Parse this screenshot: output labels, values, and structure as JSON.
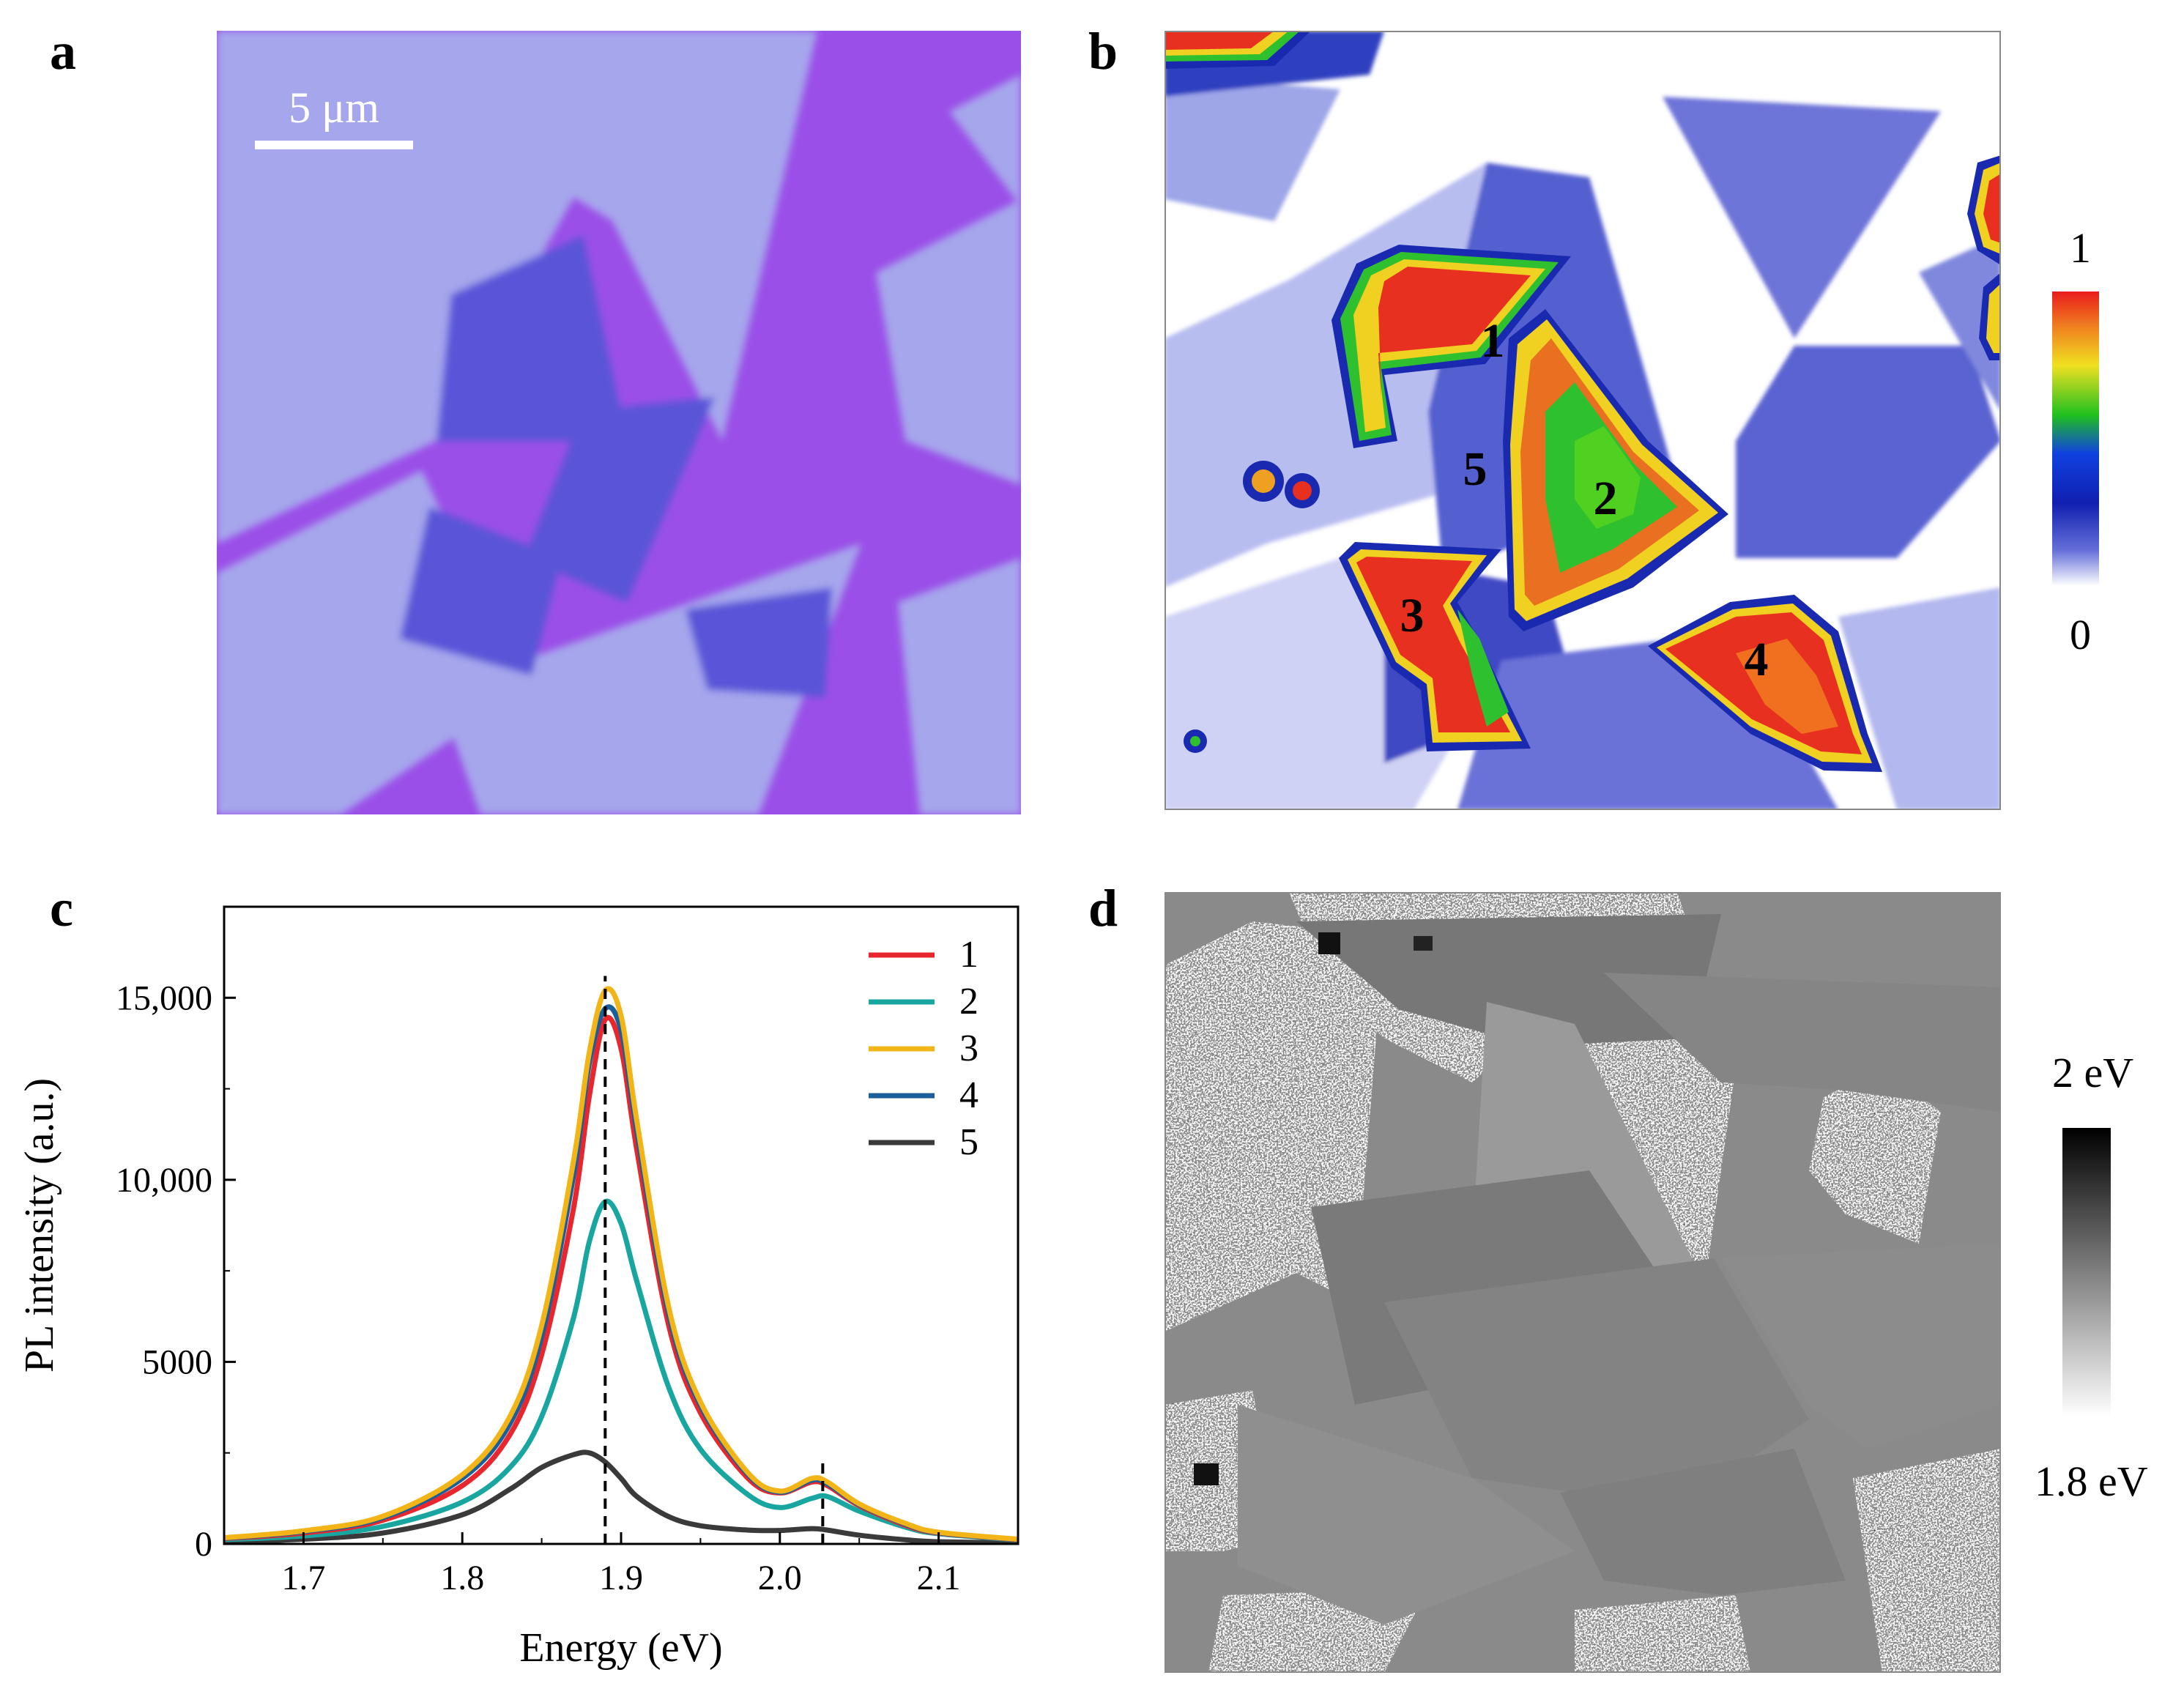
{
  "figure": {
    "panel_labels": [
      "a",
      "b",
      "c",
      "d"
    ]
  },
  "panel_a": {
    "scale_bar_label": "5 μm",
    "colors": {
      "substrate": "#9a4fe8",
      "bilayer": "#5a55d8",
      "monolayer": "#a6a6ec"
    }
  },
  "panel_b": {
    "region_labels": [
      "1",
      "2",
      "3",
      "4",
      "5"
    ],
    "colorbar": {
      "max_label": "1",
      "min_label": "0"
    }
  },
  "panel_d": {
    "colorbar": {
      "max_label": "2 eV",
      "min_label": "1.8 eV"
    }
  },
  "chart_data": {
    "type": "line",
    "xlabel": "Energy (eV)",
    "ylabel": "PL intensity (a.u.)",
    "xlim": [
      1.65,
      2.15
    ],
    "ylim": [
      0,
      17500
    ],
    "x_ticks": [
      1.7,
      1.8,
      1.9,
      2.0,
      2.1
    ],
    "x_tick_labels": [
      "1.7",
      "1.8",
      "1.9",
      "2.0",
      "2.1"
    ],
    "y_ticks": [
      0,
      5000,
      10000,
      15000
    ],
    "y_tick_labels": [
      "0",
      "5000",
      "10,000",
      "15,000"
    ],
    "reference_lines": [
      {
        "x": 1.89,
        "y_top": 15600
      },
      {
        "x": 2.027,
        "y_top": 2300
      }
    ],
    "x": [
      1.65,
      1.7,
      1.75,
      1.8,
      1.83,
      1.85,
      1.87,
      1.88,
      1.89,
      1.9,
      1.91,
      1.93,
      1.95,
      1.98,
      2.0,
      2.02,
      2.03,
      2.05,
      2.08,
      2.1,
      2.15
    ],
    "series": [
      {
        "name": "1",
        "color": "#e8262d",
        "values": [
          150,
          300,
          650,
          1600,
          3000,
          5200,
          9200,
          12300,
          14400,
          13600,
          10800,
          6000,
          3600,
          1800,
          1400,
          1700,
          1600,
          1050,
          500,
          300,
          120
        ]
      },
      {
        "name": "2",
        "color": "#1aa6a0",
        "values": [
          120,
          220,
          480,
          1150,
          2100,
          3500,
          6200,
          8300,
          9400,
          8800,
          7200,
          4300,
          2600,
          1350,
          1000,
          1250,
          1300,
          900,
          450,
          280,
          110
        ]
      },
      {
        "name": "3",
        "color": "#f2b416",
        "values": [
          170,
          360,
          760,
          1900,
          3500,
          6000,
          10500,
          13500,
          15200,
          14500,
          11600,
          6500,
          3900,
          1950,
          1450,
          1800,
          1700,
          1100,
          550,
          320,
          130
        ]
      },
      {
        "name": "4",
        "color": "#1b5f9a",
        "values": [
          160,
          340,
          720,
          1800,
          3300,
          5700,
          10100,
          13200,
          14700,
          14100,
          11300,
          6300,
          3800,
          1900,
          1420,
          1750,
          1650,
          1080,
          530,
          310,
          125
        ]
      },
      {
        "name": "5",
        "color": "#3a3a3a",
        "values": [
          60,
          130,
          300,
          800,
          1500,
          2100,
          2450,
          2500,
          2250,
          1800,
          1300,
          750,
          500,
          380,
          370,
          420,
          380,
          240,
          110,
          60,
          30
        ]
      }
    ],
    "legend_position": "top-right"
  }
}
